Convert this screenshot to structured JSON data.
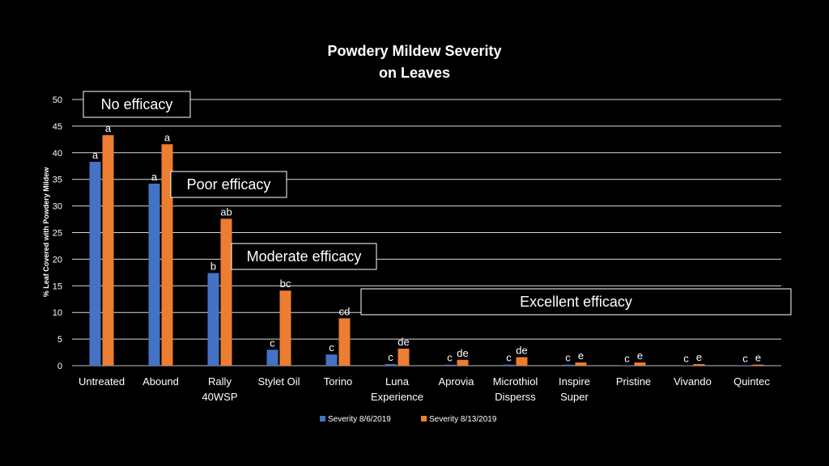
{
  "chart_data": {
    "type": "bar",
    "title": [
      "Powdery Mildew Severity",
      "on Leaves"
    ],
    "ylabel": "% Leaf Covered with Powdery Mildew",
    "ylim": [
      0,
      50
    ],
    "yticks": [
      0,
      5,
      10,
      15,
      20,
      25,
      30,
      35,
      40,
      45,
      50
    ],
    "grid": true,
    "legend_position": "bottom",
    "categories": [
      [
        "Untreated"
      ],
      [
        "Abound"
      ],
      [
        "Rally",
        "40WSP"
      ],
      [
        "Stylet Oil"
      ],
      [
        "Torino"
      ],
      [
        "Luna",
        "Experience"
      ],
      [
        "Aprovia"
      ],
      [
        "Microthiol",
        "Disperss"
      ],
      [
        "Inspire",
        "Super"
      ],
      [
        "Pristine"
      ],
      [
        "Vivando"
      ],
      [
        "Quintec"
      ]
    ],
    "series": [
      {
        "name": "Severity 8/6/2019",
        "color": "#4472C4",
        "values": [
          38.3,
          34.2,
          17.4,
          3.0,
          2.1,
          0.3,
          0.2,
          0.2,
          0.2,
          0.1,
          0.1,
          0.1
        ],
        "labels": [
          "a",
          "a",
          "b",
          "c",
          "c",
          "c",
          "c",
          "c",
          "c",
          "c",
          "c",
          "c"
        ]
      },
      {
        "name": "Severity 8/13/2019",
        "color": "#ED7D31",
        "values": [
          43.3,
          41.6,
          27.6,
          14.1,
          8.9,
          3.2,
          1.1,
          1.6,
          0.6,
          0.6,
          0.3,
          0.2
        ],
        "labels": [
          "a",
          "a",
          "ab",
          "bc",
          "cd",
          "de",
          "de",
          "de",
          "e",
          "e",
          "e",
          "e"
        ]
      }
    ],
    "annotations": [
      "No efficacy",
      "Poor efficacy",
      "Moderate efficacy",
      "Excellent efficacy"
    ]
  }
}
